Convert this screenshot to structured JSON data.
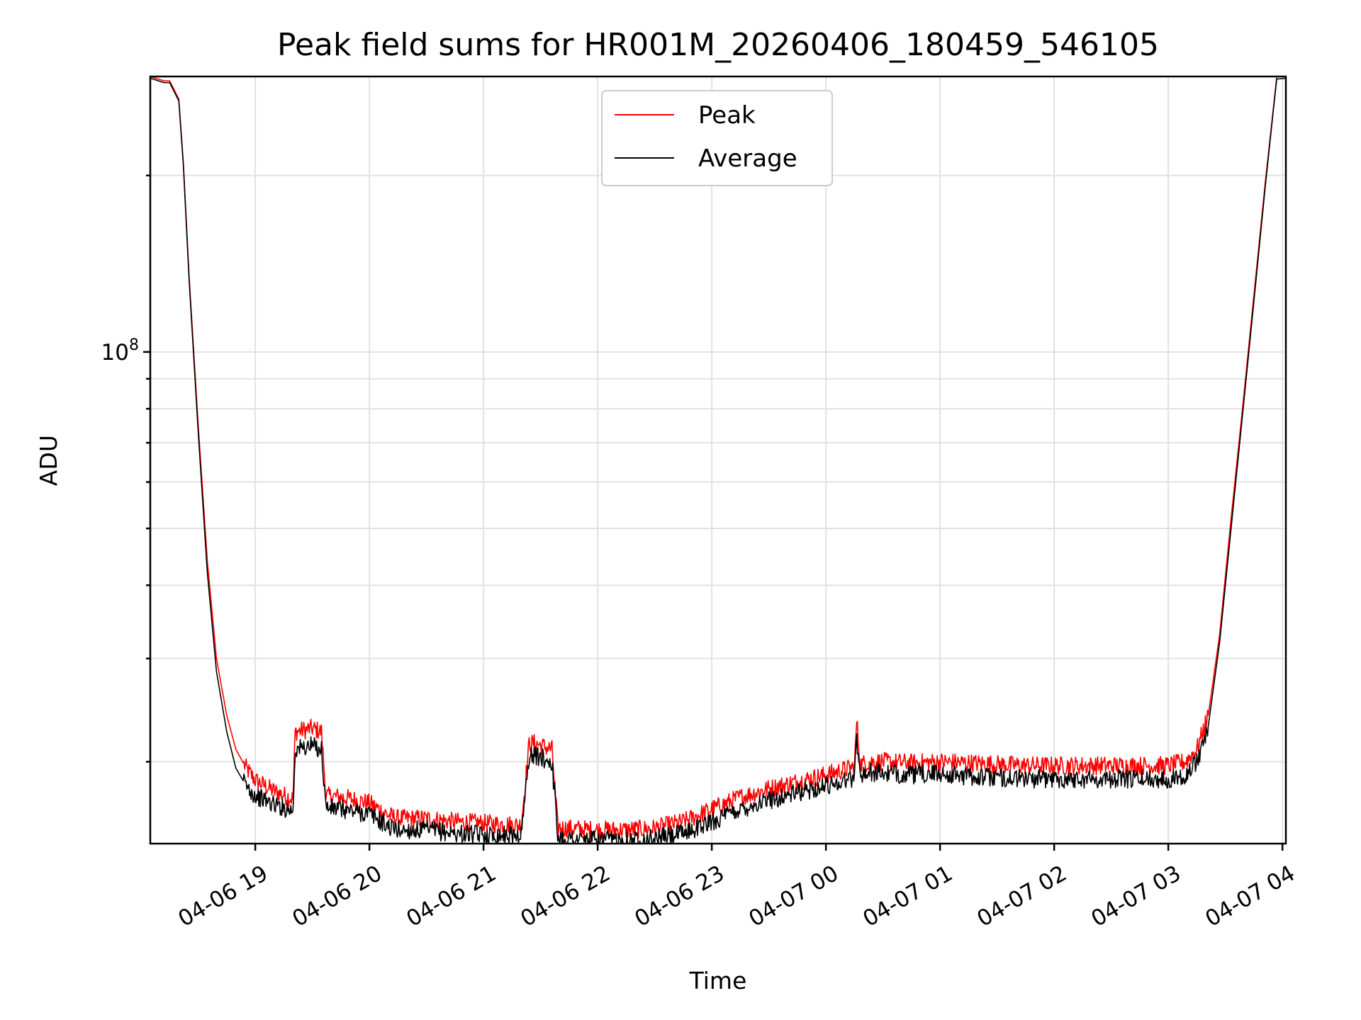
{
  "chart_data": {
    "type": "line",
    "title": "Peak field sums for HR001M_20260406_180459_546105",
    "xlabel": "Time",
    "ylabel": "ADU",
    "yscale": "log",
    "grid": true,
    "legend_position": "top-center",
    "x_unit": "hours since 04-06 18:00",
    "xlim": [
      0.08,
      10.03
    ],
    "ylim": [
      14500000,
      295000000
    ],
    "x_tick_values": [
      1,
      2,
      3,
      4,
      5,
      6,
      7,
      8,
      9,
      10
    ],
    "x_tick_labels": [
      "04-06 19",
      "04-06 20",
      "04-06 21",
      "04-06 22",
      "04-06 23",
      "04-07 00",
      "04-07 01",
      "04-07 02",
      "04-07 03",
      "04-07 04"
    ],
    "y_major_ticks": [
      100000000
    ],
    "y_major_label_base": "10",
    "y_major_label_exp": "8",
    "y_minor_ticks": [
      20000000,
      30000000,
      40000000,
      50000000,
      60000000,
      70000000,
      80000000,
      90000000,
      200000000
    ],
    "series": [
      {
        "name": "Peak",
        "color": "#ff0000",
        "x": [
          0.08,
          0.2,
          0.25,
          0.33,
          0.37,
          0.42,
          0.5,
          0.58,
          0.66,
          0.75,
          0.83,
          0.92,
          1.0,
          1.17,
          1.33,
          1.35,
          1.5,
          1.58,
          1.62,
          1.75,
          1.83,
          2.0,
          2.17,
          2.25,
          2.5,
          2.75,
          3.0,
          3.33,
          3.4,
          3.45,
          3.6,
          3.65,
          3.7,
          4.0,
          4.25,
          4.5,
          4.75,
          5.0,
          5.25,
          5.5,
          5.75,
          6.0,
          6.25,
          6.27,
          6.3,
          6.4,
          6.5,
          6.75,
          7.0,
          7.25,
          7.5,
          7.75,
          8.0,
          8.25,
          8.5,
          8.75,
          9.0,
          9.15,
          9.25,
          9.35,
          9.45,
          9.55,
          9.65,
          9.75,
          9.85,
          9.92,
          9.95,
          10.03
        ],
        "y": [
          295000000,
          290000000,
          290000000,
          270000000,
          210000000,
          135000000,
          75000000,
          44000000,
          30000000,
          24000000,
          21000000,
          19500000,
          18600000,
          17800000,
          17300000,
          22500000,
          22800000,
          22500000,
          17500000,
          17400000,
          17300000,
          17000000,
          16200000,
          16000000,
          16000000,
          15800000,
          15700000,
          15600000,
          21500000,
          21500000,
          21000000,
          15500000,
          15400000,
          15300000,
          15300000,
          15400000,
          15800000,
          16600000,
          17400000,
          18000000,
          18500000,
          19000000,
          19600000,
          23500000,
          19800000,
          20000000,
          20000000,
          19900000,
          20000000,
          19900000,
          19800000,
          19700000,
          19700000,
          19700000,
          19700000,
          19700000,
          19700000,
          20000000,
          21000000,
          24000000,
          33000000,
          52000000,
          80000000,
          125000000,
          195000000,
          260000000,
          295000000,
          295000000
        ]
      },
      {
        "name": "Average",
        "color": "#000000",
        "x": [
          0.08,
          0.2,
          0.25,
          0.33,
          0.37,
          0.42,
          0.5,
          0.58,
          0.66,
          0.75,
          0.83,
          0.92,
          1.0,
          1.17,
          1.33,
          1.35,
          1.5,
          1.58,
          1.62,
          1.75,
          1.83,
          2.0,
          2.17,
          2.25,
          2.5,
          2.75,
          3.0,
          3.33,
          3.4,
          3.45,
          3.6,
          3.65,
          3.7,
          4.0,
          4.25,
          4.5,
          4.75,
          5.0,
          5.25,
          5.5,
          5.75,
          6.0,
          6.25,
          6.27,
          6.3,
          6.4,
          6.5,
          6.75,
          7.0,
          7.25,
          7.5,
          7.75,
          8.0,
          8.25,
          8.5,
          8.75,
          9.0,
          9.15,
          9.25,
          9.35,
          9.45,
          9.55,
          9.65,
          9.75,
          9.85,
          9.92,
          9.95,
          10.03
        ],
        "y": [
          293000000,
          288000000,
          288000000,
          268000000,
          208000000,
          133000000,
          73000000,
          42000000,
          28500000,
          22500000,
          19500000,
          18200000,
          17500000,
          16900000,
          16500000,
          21000000,
          21300000,
          21000000,
          16700000,
          16600000,
          16500000,
          16300000,
          15500000,
          15300000,
          15300000,
          15100000,
          15000000,
          15000000,
          20500000,
          20500000,
          20000000,
          14900000,
          14800000,
          14700000,
          14700000,
          14800000,
          15100000,
          15800000,
          16600000,
          17200000,
          17700000,
          18200000,
          18800000,
          22000000,
          19000000,
          19200000,
          19100000,
          19000000,
          19100000,
          18900000,
          18800000,
          18700000,
          18700000,
          18700000,
          18700000,
          18700000,
          18700000,
          19000000,
          20000000,
          23000000,
          32000000,
          50000000,
          78000000,
          122000000,
          192000000,
          258000000,
          292000000,
          293000000
        ]
      }
    ]
  }
}
